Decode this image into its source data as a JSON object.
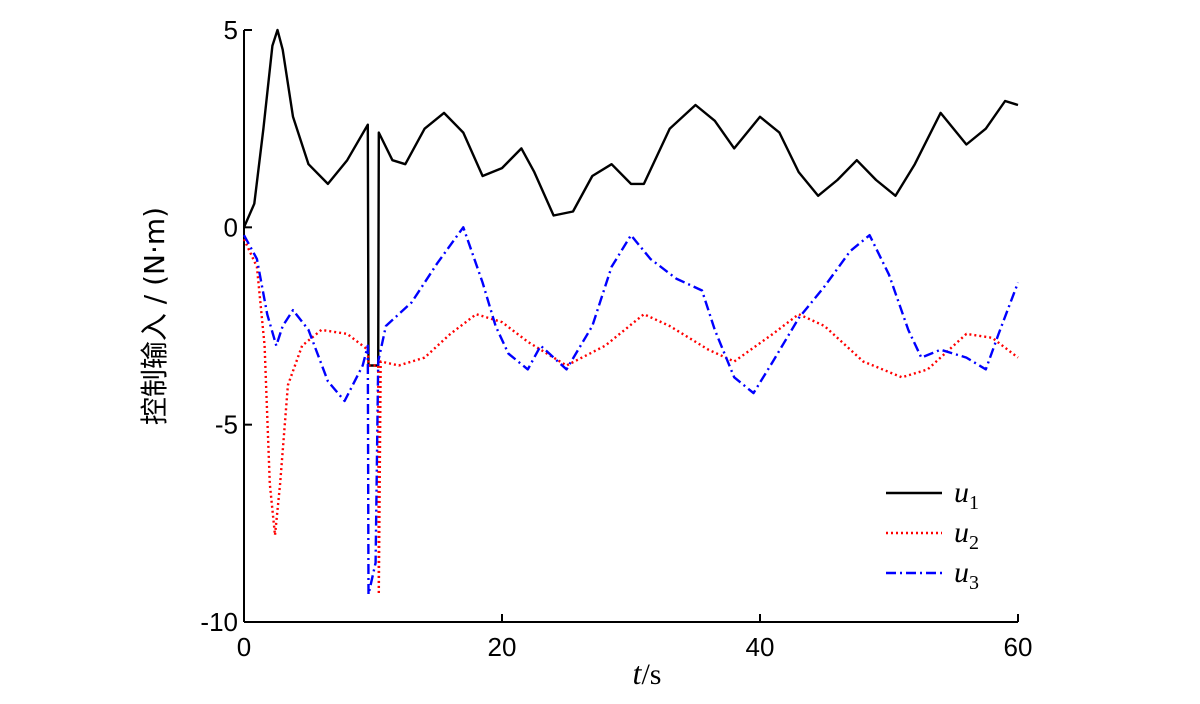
{
  "chart_data": {
    "type": "line",
    "title": "",
    "xlabel_var": "t",
    "xlabel_unit": "/s",
    "ylabel": "控制输入 / (N·m)",
    "xlim": [
      0,
      60
    ],
    "ylim": [
      -10,
      5
    ],
    "xticks": [
      0,
      20,
      40,
      60
    ],
    "yticks": [
      5,
      0,
      -5,
      -10
    ],
    "xtick_labels": [
      "0",
      "20",
      "40",
      "60"
    ],
    "ytick_labels": [
      "5",
      "0",
      "-5",
      "-10"
    ],
    "grid": false,
    "legend_position": "bottom-right",
    "series": [
      {
        "name": "u1",
        "label_main": "u",
        "label_sub": "1",
        "color": "#000000",
        "style": "solid",
        "points": [
          [
            0,
            0
          ],
          [
            0.8,
            0.6
          ],
          [
            1.5,
            2.5
          ],
          [
            2.2,
            4.6
          ],
          [
            2.6,
            5.0
          ],
          [
            3.0,
            4.5
          ],
          [
            3.8,
            2.8
          ],
          [
            5,
            1.6
          ],
          [
            6.5,
            1.1
          ],
          [
            8,
            1.7
          ],
          [
            9.6,
            2.6
          ],
          [
            9.65,
            -3.5
          ],
          [
            10.4,
            -3.5
          ],
          [
            10.45,
            2.4
          ],
          [
            11.5,
            1.7
          ],
          [
            12.5,
            1.6
          ],
          [
            14,
            2.5
          ],
          [
            15.5,
            2.9
          ],
          [
            17,
            2.4
          ],
          [
            18.5,
            1.3
          ],
          [
            20,
            1.5
          ],
          [
            21.5,
            2.0
          ],
          [
            22.5,
            1.4
          ],
          [
            24,
            0.3
          ],
          [
            25.5,
            0.4
          ],
          [
            27,
            1.3
          ],
          [
            28.5,
            1.6
          ],
          [
            30,
            1.1
          ],
          [
            31,
            1.1
          ],
          [
            33,
            2.5
          ],
          [
            35,
            3.1
          ],
          [
            36.5,
            2.7
          ],
          [
            38,
            2.0
          ],
          [
            40,
            2.8
          ],
          [
            41.5,
            2.4
          ],
          [
            43,
            1.4
          ],
          [
            44.5,
            0.8
          ],
          [
            46,
            1.2
          ],
          [
            47.5,
            1.7
          ],
          [
            49,
            1.2
          ],
          [
            50.5,
            0.8
          ],
          [
            52,
            1.6
          ],
          [
            54,
            2.9
          ],
          [
            56,
            2.1
          ],
          [
            57.5,
            2.5
          ],
          [
            59,
            3.2
          ],
          [
            60,
            3.1
          ]
        ]
      },
      {
        "name": "u2",
        "label_main": "u",
        "label_sub": "2",
        "color": "#ff0000",
        "style": "dotted",
        "points": [
          [
            0,
            -0.3
          ],
          [
            1,
            -1.0
          ],
          [
            1.6,
            -3.0
          ],
          [
            2.0,
            -6.5
          ],
          [
            2.4,
            -7.8
          ],
          [
            2.8,
            -6.5
          ],
          [
            3.4,
            -4.0
          ],
          [
            4.5,
            -3.0
          ],
          [
            6,
            -2.6
          ],
          [
            8,
            -2.7
          ],
          [
            9.6,
            -3.1
          ],
          [
            9.65,
            -3.5
          ],
          [
            10.4,
            -3.5
          ],
          [
            10.45,
            -9.3
          ],
          [
            10.6,
            -3.4
          ],
          [
            12,
            -3.5
          ],
          [
            14,
            -3.3
          ],
          [
            16,
            -2.7
          ],
          [
            18,
            -2.2
          ],
          [
            20,
            -2.4
          ],
          [
            22,
            -2.9
          ],
          [
            25,
            -3.5
          ],
          [
            28,
            -3.0
          ],
          [
            31,
            -2.2
          ],
          [
            33,
            -2.5
          ],
          [
            36,
            -3.1
          ],
          [
            38,
            -3.4
          ],
          [
            41,
            -2.7
          ],
          [
            43,
            -2.2
          ],
          [
            45,
            -2.5
          ],
          [
            48,
            -3.4
          ],
          [
            51,
            -3.8
          ],
          [
            53,
            -3.6
          ],
          [
            56,
            -2.7
          ],
          [
            58,
            -2.8
          ],
          [
            60,
            -3.3
          ]
        ]
      },
      {
        "name": "u3",
        "label_main": "u",
        "label_sub": "3",
        "color": "#0000ff",
        "style": "dashdot",
        "points": [
          [
            0,
            -0.2
          ],
          [
            1,
            -0.8
          ],
          [
            1.8,
            -2.2
          ],
          [
            2.5,
            -3.0
          ],
          [
            3,
            -2.5
          ],
          [
            3.8,
            -2.1
          ],
          [
            5,
            -2.6
          ],
          [
            6.5,
            -3.9
          ],
          [
            7.8,
            -4.4
          ],
          [
            9.2,
            -3.5
          ],
          [
            9.6,
            -3.0
          ],
          [
            9.65,
            -9.3
          ],
          [
            10.2,
            -8.5
          ],
          [
            10.4,
            -3.4
          ],
          [
            11,
            -2.5
          ],
          [
            13,
            -1.9
          ],
          [
            15,
            -0.9
          ],
          [
            17,
            0.0
          ],
          [
            18.5,
            -1.4
          ],
          [
            19.5,
            -2.5
          ],
          [
            20.5,
            -3.2
          ],
          [
            22,
            -3.6
          ],
          [
            23,
            -3.0
          ],
          [
            25,
            -3.6
          ],
          [
            27,
            -2.5
          ],
          [
            28.5,
            -1.0
          ],
          [
            30,
            -0.2
          ],
          [
            31.5,
            -0.8
          ],
          [
            33.5,
            -1.3
          ],
          [
            35.5,
            -1.6
          ],
          [
            36.5,
            -2.6
          ],
          [
            38,
            -3.8
          ],
          [
            39.5,
            -4.2
          ],
          [
            41,
            -3.4
          ],
          [
            43,
            -2.3
          ],
          [
            45,
            -1.5
          ],
          [
            47,
            -0.6
          ],
          [
            48.5,
            -0.2
          ],
          [
            50,
            -1.2
          ],
          [
            51.5,
            -2.6
          ],
          [
            52.5,
            -3.3
          ],
          [
            54,
            -3.1
          ],
          [
            56,
            -3.3
          ],
          [
            57.5,
            -3.6
          ],
          [
            58.5,
            -2.7
          ],
          [
            60,
            -1.4
          ]
        ]
      }
    ]
  }
}
